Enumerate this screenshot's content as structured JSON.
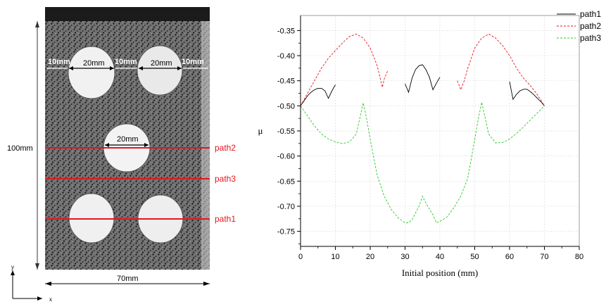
{
  "specimen": {
    "height_label": "100mm",
    "width_label": "70mm",
    "dim_10mm": "10mm",
    "dim_20mm": "20mm",
    "axis_y_label": "y",
    "axis_x_label": "x",
    "path_labels": [
      "path2",
      "path3",
      "path1"
    ],
    "path_color": "#e8141e"
  },
  "chart_data": {
    "type": "line",
    "title": "",
    "xlabel": "Initial position (mm)",
    "ylabel": "μ",
    "xlim": [
      0,
      80
    ],
    "ylim": [
      -0.78,
      -0.32
    ],
    "xticks": [
      0,
      10,
      20,
      30,
      40,
      50,
      60,
      70,
      80
    ],
    "yticks": [
      -0.35,
      -0.4,
      -0.45,
      -0.5,
      -0.55,
      -0.6,
      -0.65,
      -0.7,
      -0.75
    ],
    "grid": true,
    "legend_position": "top-right",
    "series": [
      {
        "name": "path1",
        "color": "#000000",
        "dash": "solid",
        "segments": [
          [
            [
              0,
              -0.5
            ],
            [
              1,
              -0.49
            ],
            [
              2,
              -0.48
            ],
            [
              3,
              -0.473
            ],
            [
              4,
              -0.468
            ],
            [
              5,
              -0.465
            ],
            [
              6,
              -0.465
            ],
            [
              7,
              -0.47
            ],
            [
              8,
              -0.485
            ],
            [
              9,
              -0.47
            ],
            [
              10,
              -0.458
            ]
          ],
          [
            [
              30,
              -0.456
            ],
            [
              31,
              -0.473
            ],
            [
              32,
              -0.445
            ],
            [
              33,
              -0.428
            ],
            [
              34,
              -0.42
            ],
            [
              35,
              -0.418
            ],
            [
              36,
              -0.428
            ],
            [
              37,
              -0.443
            ],
            [
              38,
              -0.468
            ],
            [
              39,
              -0.455
            ],
            [
              40,
              -0.443
            ]
          ],
          [
            [
              60,
              -0.452
            ],
            [
              61,
              -0.487
            ],
            [
              62,
              -0.477
            ],
            [
              63,
              -0.47
            ],
            [
              64,
              -0.467
            ],
            [
              65,
              -0.467
            ],
            [
              66,
              -0.472
            ],
            [
              67,
              -0.478
            ],
            [
              68,
              -0.485
            ],
            [
              69,
              -0.492
            ],
            [
              70,
              -0.5
            ]
          ]
        ]
      },
      {
        "name": "path2",
        "color": "#e8141e",
        "dash": "dashed",
        "segments": [
          [
            [
              0,
              -0.5
            ],
            [
              2,
              -0.475
            ],
            [
              4,
              -0.45
            ],
            [
              6,
              -0.425
            ],
            [
              8,
              -0.405
            ],
            [
              10,
              -0.39
            ],
            [
              12,
              -0.375
            ],
            [
              14,
              -0.362
            ],
            [
              16,
              -0.357
            ],
            [
              18,
              -0.365
            ],
            [
              20,
              -0.385
            ],
            [
              22,
              -0.42
            ],
            [
              23.5,
              -0.463
            ],
            [
              24,
              -0.447
            ],
            [
              25,
              -0.43
            ]
          ],
          [
            [
              45,
              -0.45
            ],
            [
              46,
              -0.468
            ],
            [
              47,
              -0.45
            ],
            [
              48,
              -0.425
            ],
            [
              50,
              -0.385
            ],
            [
              52,
              -0.365
            ],
            [
              54,
              -0.357
            ],
            [
              56,
              -0.365
            ],
            [
              58,
              -0.38
            ],
            [
              60,
              -0.4
            ],
            [
              62,
              -0.425
            ],
            [
              64,
              -0.445
            ],
            [
              66,
              -0.46
            ],
            [
              68,
              -0.478
            ],
            [
              70,
              -0.5
            ]
          ]
        ]
      },
      {
        "name": "path3",
        "color": "#2dc82d",
        "dash": "dashed",
        "segments": [
          [
            [
              0,
              -0.5
            ],
            [
              2,
              -0.52
            ],
            [
              4,
              -0.54
            ],
            [
              6,
              -0.556
            ],
            [
              8,
              -0.566
            ],
            [
              10,
              -0.572
            ],
            [
              12,
              -0.575
            ],
            [
              14,
              -0.572
            ],
            [
              16,
              -0.556
            ],
            [
              18,
              -0.494
            ],
            [
              19,
              -0.527
            ],
            [
              20,
              -0.567
            ],
            [
              22,
              -0.638
            ],
            [
              24,
              -0.68
            ],
            [
              26,
              -0.706
            ],
            [
              28,
              -0.723
            ],
            [
              30,
              -0.733
            ],
            [
              31,
              -0.733
            ],
            [
              32,
              -0.727
            ],
            [
              34,
              -0.7
            ],
            [
              35,
              -0.68
            ],
            [
              36,
              -0.694
            ],
            [
              38,
              -0.717
            ],
            [
              39,
              -0.733
            ],
            [
              40,
              -0.73
            ],
            [
              42,
              -0.722
            ],
            [
              44,
              -0.703
            ],
            [
              46,
              -0.68
            ],
            [
              48,
              -0.644
            ],
            [
              50,
              -0.567
            ],
            [
              51,
              -0.527
            ],
            [
              52,
              -0.493
            ],
            [
              54,
              -0.556
            ],
            [
              56,
              -0.574
            ],
            [
              58,
              -0.573
            ],
            [
              60,
              -0.566
            ],
            [
              62,
              -0.555
            ],
            [
              64,
              -0.542
            ],
            [
              66,
              -0.528
            ],
            [
              68,
              -0.514
            ],
            [
              70,
              -0.5
            ]
          ]
        ]
      }
    ]
  }
}
